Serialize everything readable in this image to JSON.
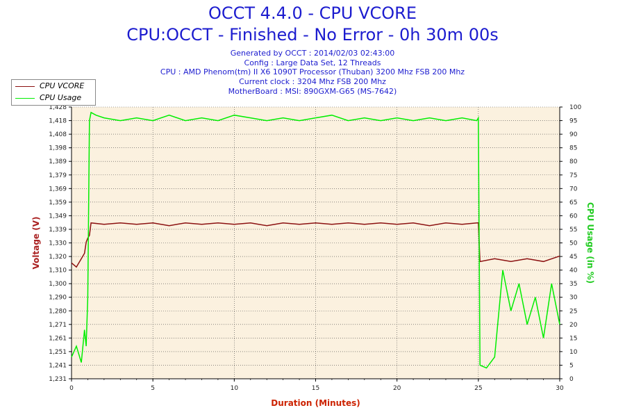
{
  "title_lines": [
    "OCCT 4.4.0 - CPU VCORE",
    "CPU:OCCT - Finished - No Error - 0h 30m 00s"
  ],
  "info_lines": [
    "Generated by OCCT : 2014/02/03 02:43:00",
    "Config : Large Data Set, 12 Threads",
    "CPU : AMD Phenom(tm) II X6 1090T Processor (Thuban) 3200 Mhz FSB 200 Mhz",
    "Current clock : 3204 Mhz FSB 200 Mhz",
    "MotherBoard : MSI: 890GXM-G65 (MS-7642)"
  ],
  "colors": {
    "title": "#1c1ccf",
    "vcore": "#8b1010",
    "usage": "#00ee00",
    "plot_bg": "#fbf1df",
    "grid": "#444444",
    "axis_title_left": "#aa2222",
    "axis_title_right": "#22cc22",
    "axis_title_bottom": "#cc2200"
  },
  "chart_data": {
    "type": "line",
    "xlabel": "Duration (Minutes)",
    "ylabel_left": "Voltage (V)",
    "ylabel_right": "CPU Usage (in %)",
    "xlim": [
      0,
      30
    ],
    "x_ticks": [
      "0",
      "5",
      "10",
      "15",
      "20",
      "25",
      "30"
    ],
    "x_tick_values": [
      0,
      5,
      10,
      15,
      20,
      25,
      30
    ],
    "left_ticks": [
      "1,231",
      "1,241",
      "1,251",
      "1,261",
      "1,271",
      "1,280",
      "1,290",
      "1,300",
      "1,310",
      "1,320",
      "1,330",
      "1,339",
      "1,349",
      "1,359",
      "1,369",
      "1,379",
      "1,389",
      "1,398",
      "1,408",
      "1,418",
      "1,428"
    ],
    "left_ylim": [
      1.231,
      1.428
    ],
    "right_ticks": [
      "0",
      "5",
      "10",
      "15",
      "20",
      "25",
      "30",
      "35",
      "40",
      "45",
      "50",
      "55",
      "60",
      "65",
      "70",
      "75",
      "80",
      "85",
      "90",
      "95",
      "100"
    ],
    "right_ylim": [
      0,
      100
    ],
    "series": [
      {
        "name": "CPU VCORE",
        "axis": "left",
        "x": [
          0,
          0.3,
          0.6,
          0.8,
          0.9,
          1.0,
          1.1,
          1.2,
          2,
          3,
          4,
          5,
          6,
          7,
          8,
          9,
          10,
          11,
          12,
          13,
          14,
          15,
          16,
          17,
          18,
          19,
          20,
          21,
          22,
          23,
          24,
          24.9,
          25.0,
          25.1,
          26,
          27,
          28,
          29,
          30
        ],
        "y": [
          1.315,
          1.312,
          1.318,
          1.322,
          1.33,
          1.333,
          1.335,
          1.344,
          1.343,
          1.344,
          1.343,
          1.344,
          1.342,
          1.344,
          1.343,
          1.344,
          1.343,
          1.344,
          1.342,
          1.344,
          1.343,
          1.344,
          1.343,
          1.344,
          1.343,
          1.344,
          1.343,
          1.344,
          1.342,
          1.344,
          1.343,
          1.344,
          1.344,
          1.316,
          1.318,
          1.316,
          1.318,
          1.316,
          1.32
        ]
      },
      {
        "name": "CPU Usage",
        "axis": "right",
        "x": [
          0,
          0.3,
          0.6,
          0.8,
          0.9,
          1.0,
          1.1,
          1.2,
          1.5,
          2,
          3,
          4,
          5,
          6,
          7,
          8,
          9,
          10,
          11,
          12,
          13,
          14,
          15,
          16,
          17,
          18,
          19,
          20,
          21,
          22,
          23,
          24,
          24.9,
          25.0,
          25.1,
          25.5,
          26,
          26.5,
          27,
          27.5,
          28,
          28.5,
          29,
          29.5,
          30
        ],
        "y": [
          8,
          12,
          6,
          18,
          12,
          30,
          95,
          98,
          97,
          96,
          95,
          96,
          95,
          97,
          95,
          96,
          95,
          97,
          96,
          95,
          96,
          95,
          96,
          97,
          95,
          96,
          95,
          96,
          95,
          96,
          95,
          96,
          95,
          96,
          5,
          4,
          8,
          40,
          25,
          35,
          20,
          30,
          15,
          35,
          20
        ]
      }
    ]
  },
  "legend_labels": [
    "CPU VCORE",
    "CPU Usage"
  ]
}
